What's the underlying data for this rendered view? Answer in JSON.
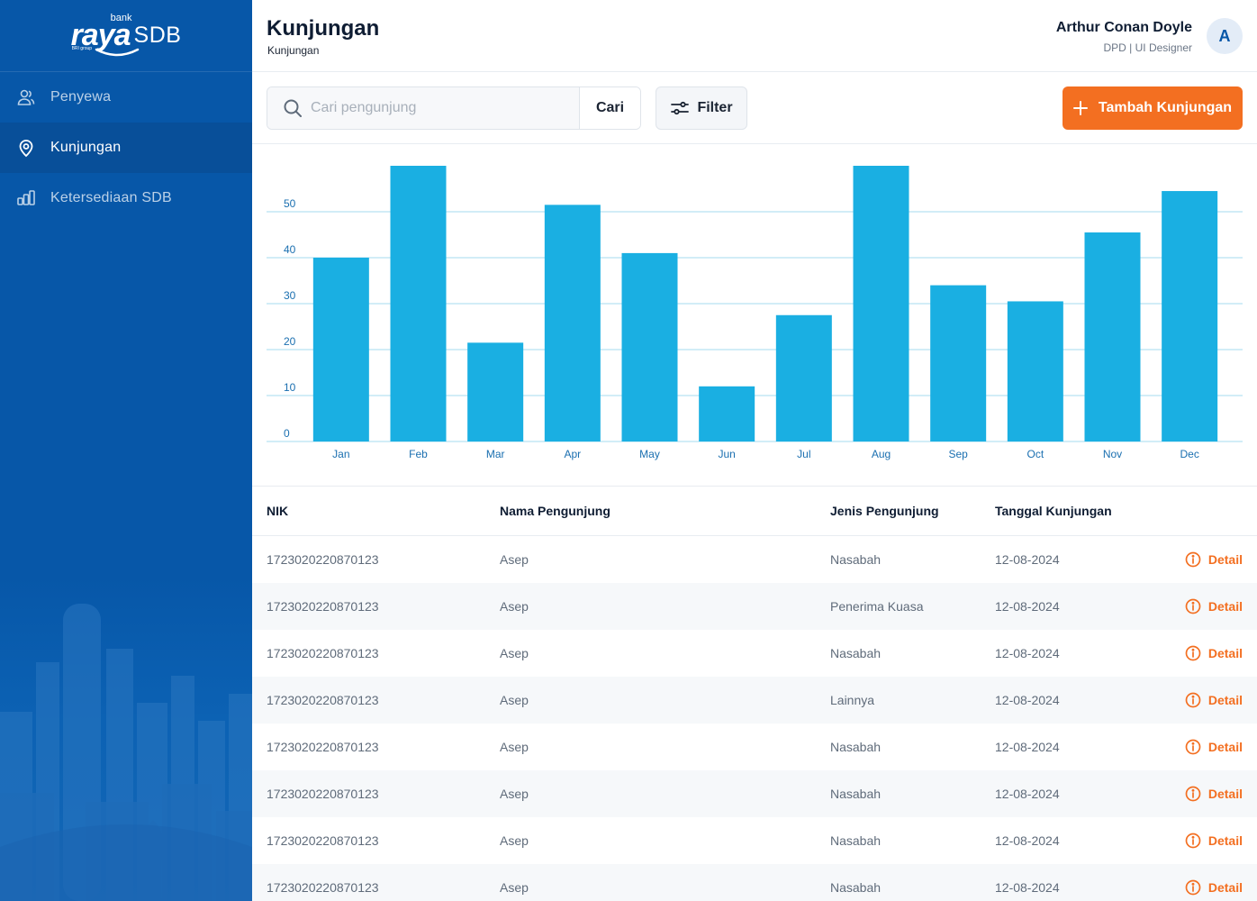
{
  "brand": {
    "word": "raya",
    "bank": "bank",
    "group": "BRI group",
    "product": "SDB"
  },
  "sidebar": {
    "items": [
      {
        "label": "Penyewa",
        "icon": "users-icon",
        "active": false
      },
      {
        "label": "Kunjungan",
        "icon": "location-pin-icon",
        "active": true
      },
      {
        "label": "Ketersediaan SDB",
        "icon": "bar-chart-icon",
        "active": false
      }
    ]
  },
  "header": {
    "title": "Kunjungan",
    "breadcrumb": "Kunjungan",
    "user": {
      "name": "Arthur Conan Doyle",
      "role": "DPD | UI Designer",
      "initial": "A"
    }
  },
  "toolbar": {
    "search_placeholder": "Cari pengunjung",
    "search_label": "Cari",
    "filter_label": "Filter",
    "add_label": "Tambah Kunjungan"
  },
  "colors": {
    "sidebar": "#0757a8",
    "accent": "#f36f21",
    "bar": "#1aafe2",
    "grid": "#a6dbef",
    "axis_text": "#1a6fb0"
  },
  "chart_data": {
    "type": "bar",
    "categories": [
      "Jan",
      "Feb",
      "Mar",
      "Apr",
      "May",
      "Jun",
      "Jul",
      "Aug",
      "Sep",
      "Oct",
      "Nov",
      "Dec"
    ],
    "values": [
      40,
      60,
      21.5,
      51.5,
      41,
      12,
      27.5,
      60,
      34,
      30.5,
      45.5,
      54.5
    ],
    "yticks": [
      0,
      10,
      20,
      30,
      40,
      50
    ],
    "ylim": [
      0,
      60
    ],
    "title": "",
    "xlabel": "",
    "ylabel": "",
    "grid": true
  },
  "table": {
    "columns": [
      "NIK",
      "Nama Pengunjung",
      "Jenis Pengunjung",
      "Tanggal Kunjungan"
    ],
    "action_label": "Detail",
    "rows": [
      {
        "nik": "1723020220870123",
        "nama": "Asep",
        "jenis": "Nasabah",
        "tanggal": "12-08-2024"
      },
      {
        "nik": "1723020220870123",
        "nama": "Asep",
        "jenis": "Penerima Kuasa",
        "tanggal": "12-08-2024"
      },
      {
        "nik": "1723020220870123",
        "nama": "Asep",
        "jenis": "Nasabah",
        "tanggal": "12-08-2024"
      },
      {
        "nik": "1723020220870123",
        "nama": "Asep",
        "jenis": "Lainnya",
        "tanggal": "12-08-2024"
      },
      {
        "nik": "1723020220870123",
        "nama": "Asep",
        "jenis": "Nasabah",
        "tanggal": "12-08-2024"
      },
      {
        "nik": "1723020220870123",
        "nama": "Asep",
        "jenis": "Nasabah",
        "tanggal": "12-08-2024"
      },
      {
        "nik": "1723020220870123",
        "nama": "Asep",
        "jenis": "Nasabah",
        "tanggal": "12-08-2024"
      },
      {
        "nik": "1723020220870123",
        "nama": "Asep",
        "jenis": "Nasabah",
        "tanggal": "12-08-2024"
      }
    ]
  }
}
